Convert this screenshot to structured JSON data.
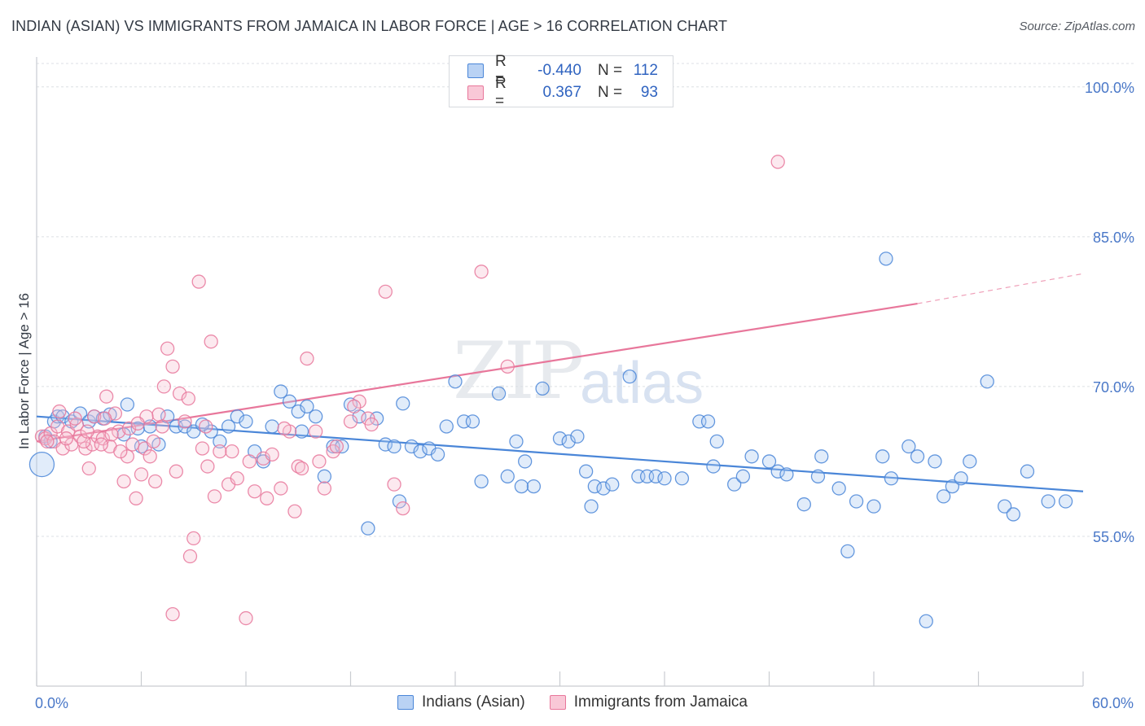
{
  "title": "INDIAN (ASIAN) VS IMMIGRANTS FROM JAMAICA IN LABOR FORCE | AGE > 16 CORRELATION CHART",
  "source": "Source: ZipAtlas.com",
  "watermark_zip": "ZIP",
  "watermark_atlas": "atlas",
  "legend": {
    "rows": [
      {
        "r_label": "R =",
        "r_value": "-0.440",
        "n_label": "N =",
        "n_value": "112"
      },
      {
        "r_label": "R =",
        "r_value": "0.367",
        "n_label": "N =",
        "n_value": "93"
      }
    ]
  },
  "chart_data": {
    "type": "scatter",
    "title": "INDIAN (ASIAN) VS IMMIGRANTS FROM JAMAICA IN LABOR FORCE | AGE > 16 CORRELATION CHART",
    "xlabel": "",
    "ylabel": "In Labor Force | Age > 16",
    "xlim": [
      0,
      60
    ],
    "ylim": [
      40,
      103
    ],
    "x_tick_labels": [
      {
        "value": 0,
        "label": "0.0%"
      },
      {
        "value": 60,
        "label": "60.0%"
      }
    ],
    "y_ticks": [
      {
        "value": 55,
        "label": "55.0%"
      },
      {
        "value": 70,
        "label": "70.0%"
      },
      {
        "value": 85,
        "label": "85.0%"
      },
      {
        "value": 100,
        "label": "100.0%"
      }
    ],
    "grid": true,
    "legend_placement": "top-center",
    "series": [
      {
        "name": "Indians (Asian)",
        "color": "#4a86d8",
        "fill": "#a9c8f0",
        "trend": {
          "x": [
            0,
            60
          ],
          "y": [
            67.0,
            59.5
          ],
          "dashed_from": null
        },
        "points": [
          [
            0.3,
            62.2
          ],
          [
            0.5,
            65.0
          ],
          [
            0.8,
            64.5
          ],
          [
            1.0,
            66.5
          ],
          [
            1.2,
            67.0
          ],
          [
            1.5,
            67.0
          ],
          [
            2.0,
            66.5
          ],
          [
            2.5,
            67.3
          ],
          [
            3.0,
            66.5
          ],
          [
            3.3,
            67.0
          ],
          [
            3.8,
            66.8
          ],
          [
            4.2,
            67.2
          ],
          [
            5.0,
            65.2
          ],
          [
            5.2,
            68.2
          ],
          [
            5.8,
            65.8
          ],
          [
            6.0,
            64.0
          ],
          [
            6.5,
            66.0
          ],
          [
            7.0,
            64.2
          ],
          [
            7.5,
            67.0
          ],
          [
            8.0,
            66.0
          ],
          [
            8.5,
            66.0
          ],
          [
            9.0,
            65.5
          ],
          [
            10.0,
            65.5
          ],
          [
            10.5,
            64.5
          ],
          [
            11.0,
            66.0
          ],
          [
            11.5,
            67.0
          ],
          [
            12.0,
            66.5
          ],
          [
            12.5,
            63.5
          ],
          [
            13.0,
            62.5
          ],
          [
            13.5,
            66.0
          ],
          [
            14.0,
            69.5
          ],
          [
            14.5,
            68.5
          ],
          [
            15.0,
            67.5
          ],
          [
            15.5,
            68.0
          ],
          [
            16.0,
            67.0
          ],
          [
            16.5,
            61.0
          ],
          [
            17.0,
            64.0
          ],
          [
            17.5,
            64.0
          ],
          [
            18.0,
            68.2
          ],
          [
            18.5,
            67.0
          ],
          [
            19.0,
            55.8
          ],
          [
            19.5,
            66.8
          ],
          [
            20.0,
            64.2
          ],
          [
            20.5,
            64.0
          ],
          [
            21.0,
            68.3
          ],
          [
            21.5,
            64.0
          ],
          [
            22.0,
            63.5
          ],
          [
            22.5,
            63.8
          ],
          [
            23.0,
            63.2
          ],
          [
            23.5,
            66.0
          ],
          [
            24.0,
            70.5
          ],
          [
            24.5,
            66.5
          ],
          [
            25.0,
            66.5
          ],
          [
            25.5,
            60.5
          ],
          [
            26.5,
            69.3
          ],
          [
            27.0,
            61.0
          ],
          [
            27.5,
            64.5
          ],
          [
            28.0,
            62.5
          ],
          [
            28.5,
            60.0
          ],
          [
            29.0,
            69.8
          ],
          [
            30.0,
            64.8
          ],
          [
            30.5,
            64.5
          ],
          [
            31.0,
            65.0
          ],
          [
            31.5,
            61.5
          ],
          [
            32.0,
            60.0
          ],
          [
            32.5,
            59.8
          ],
          [
            33.0,
            60.2
          ],
          [
            34.0,
            71.0
          ],
          [
            34.5,
            61.0
          ],
          [
            35.0,
            61.0
          ],
          [
            35.5,
            61.0
          ],
          [
            36.0,
            60.8
          ],
          [
            37.0,
            60.8
          ],
          [
            38.0,
            66.5
          ],
          [
            38.5,
            66.5
          ],
          [
            39.0,
            64.5
          ],
          [
            40.0,
            60.2
          ],
          [
            40.5,
            61.0
          ],
          [
            41.0,
            63.0
          ],
          [
            42.0,
            62.5
          ],
          [
            42.5,
            61.5
          ],
          [
            43.0,
            61.2
          ],
          [
            44.0,
            58.2
          ],
          [
            45.0,
            63.0
          ],
          [
            46.0,
            59.8
          ],
          [
            47.0,
            58.5
          ],
          [
            48.0,
            58.0
          ],
          [
            48.5,
            63.0
          ],
          [
            49.0,
            60.8
          ],
          [
            50.0,
            64.0
          ],
          [
            50.5,
            63.0
          ],
          [
            51.0,
            46.5
          ],
          [
            51.5,
            62.5
          ],
          [
            52.0,
            59.0
          ],
          [
            52.5,
            60.0
          ],
          [
            53.5,
            62.5
          ],
          [
            54.5,
            70.5
          ],
          [
            55.5,
            58.0
          ],
          [
            56.0,
            57.2
          ],
          [
            58.0,
            58.5
          ],
          [
            59.0,
            58.5
          ],
          [
            46.5,
            53.5
          ],
          [
            48.7,
            82.8
          ],
          [
            15.2,
            65.5
          ],
          [
            9.5,
            66.2
          ],
          [
            27.8,
            60.0
          ],
          [
            31.8,
            58.0
          ],
          [
            38.8,
            62.0
          ],
          [
            44.8,
            61.0
          ],
          [
            53.0,
            60.8
          ],
          [
            20.8,
            58.5
          ],
          [
            56.8,
            61.5
          ]
        ]
      },
      {
        "name": "Immigrants from Jamaica",
        "color": "#e8779b",
        "fill": "#f7bfd1",
        "trend": {
          "x": [
            0,
            50.5
          ],
          "y": [
            64.5,
            78.3
          ],
          "dashed_to": [
            60,
            81.3
          ]
        },
        "points": [
          [
            0.3,
            65.0
          ],
          [
            0.5,
            64.8
          ],
          [
            0.8,
            65.3
          ],
          [
            1.0,
            64.5
          ],
          [
            1.2,
            66.0
          ],
          [
            1.5,
            63.8
          ],
          [
            1.8,
            65.5
          ],
          [
            2.0,
            64.2
          ],
          [
            2.3,
            66.2
          ],
          [
            2.5,
            65.0
          ],
          [
            2.8,
            63.8
          ],
          [
            3.0,
            61.8
          ],
          [
            3.2,
            64.2
          ],
          [
            3.5,
            65.0
          ],
          [
            3.8,
            64.8
          ],
          [
            4.0,
            69.0
          ],
          [
            4.2,
            64.0
          ],
          [
            4.5,
            67.3
          ],
          [
            4.7,
            65.5
          ],
          [
            5.0,
            60.5
          ],
          [
            5.2,
            63.0
          ],
          [
            5.5,
            64.2
          ],
          [
            5.7,
            58.8
          ],
          [
            6.0,
            61.2
          ],
          [
            6.2,
            63.8
          ],
          [
            6.5,
            63.0
          ],
          [
            6.8,
            60.5
          ],
          [
            7.0,
            67.2
          ],
          [
            7.3,
            70.0
          ],
          [
            7.5,
            73.8
          ],
          [
            7.8,
            72.0
          ],
          [
            8.0,
            61.5
          ],
          [
            8.2,
            69.3
          ],
          [
            8.5,
            66.5
          ],
          [
            8.8,
            53.0
          ],
          [
            9.0,
            54.8
          ],
          [
            9.3,
            80.5
          ],
          [
            9.5,
            63.8
          ],
          [
            9.8,
            62.0
          ],
          [
            10.0,
            74.5
          ],
          [
            10.5,
            63.5
          ],
          [
            11.0,
            60.2
          ],
          [
            11.5,
            60.8
          ],
          [
            12.0,
            46.8
          ],
          [
            12.5,
            59.5
          ],
          [
            13.0,
            62.8
          ],
          [
            13.5,
            63.2
          ],
          [
            14.0,
            59.8
          ],
          [
            14.5,
            65.5
          ],
          [
            15.0,
            62.0
          ],
          [
            15.5,
            72.8
          ],
          [
            16.0,
            65.5
          ],
          [
            16.5,
            59.8
          ],
          [
            17.0,
            63.5
          ],
          [
            18.0,
            66.5
          ],
          [
            18.5,
            68.5
          ],
          [
            19.0,
            66.8
          ],
          [
            20.0,
            79.5
          ],
          [
            21.0,
            57.8
          ],
          [
            25.5,
            81.5
          ],
          [
            27.0,
            72.0
          ],
          [
            42.5,
            92.5
          ],
          [
            1.3,
            67.5
          ],
          [
            2.2,
            66.8
          ],
          [
            3.3,
            67.0
          ],
          [
            4.3,
            65.2
          ],
          [
            5.3,
            65.8
          ],
          [
            6.3,
            67.0
          ],
          [
            7.8,
            47.2
          ],
          [
            10.2,
            59.0
          ],
          [
            11.2,
            63.5
          ],
          [
            12.2,
            62.5
          ],
          [
            13.2,
            58.8
          ],
          [
            14.2,
            65.8
          ],
          [
            15.2,
            61.8
          ],
          [
            16.2,
            62.5
          ],
          [
            17.2,
            64.0
          ],
          [
            18.2,
            68.0
          ],
          [
            19.2,
            66.2
          ],
          [
            1.7,
            64.8
          ],
          [
            2.7,
            64.5
          ],
          [
            3.7,
            64.2
          ],
          [
            4.8,
            63.5
          ],
          [
            5.8,
            66.3
          ],
          [
            6.7,
            64.5
          ],
          [
            7.2,
            66.0
          ],
          [
            8.7,
            68.8
          ],
          [
            9.7,
            66.0
          ],
          [
            2.9,
            65.5
          ],
          [
            3.9,
            66.8
          ],
          [
            0.6,
            64.5
          ],
          [
            20.5,
            60.2
          ],
          [
            14.8,
            57.5
          ]
        ]
      }
    ]
  },
  "bottom_legend": [
    {
      "label": "Indians (Asian)"
    },
    {
      "label": "Immigrants from Jamaica"
    }
  ]
}
